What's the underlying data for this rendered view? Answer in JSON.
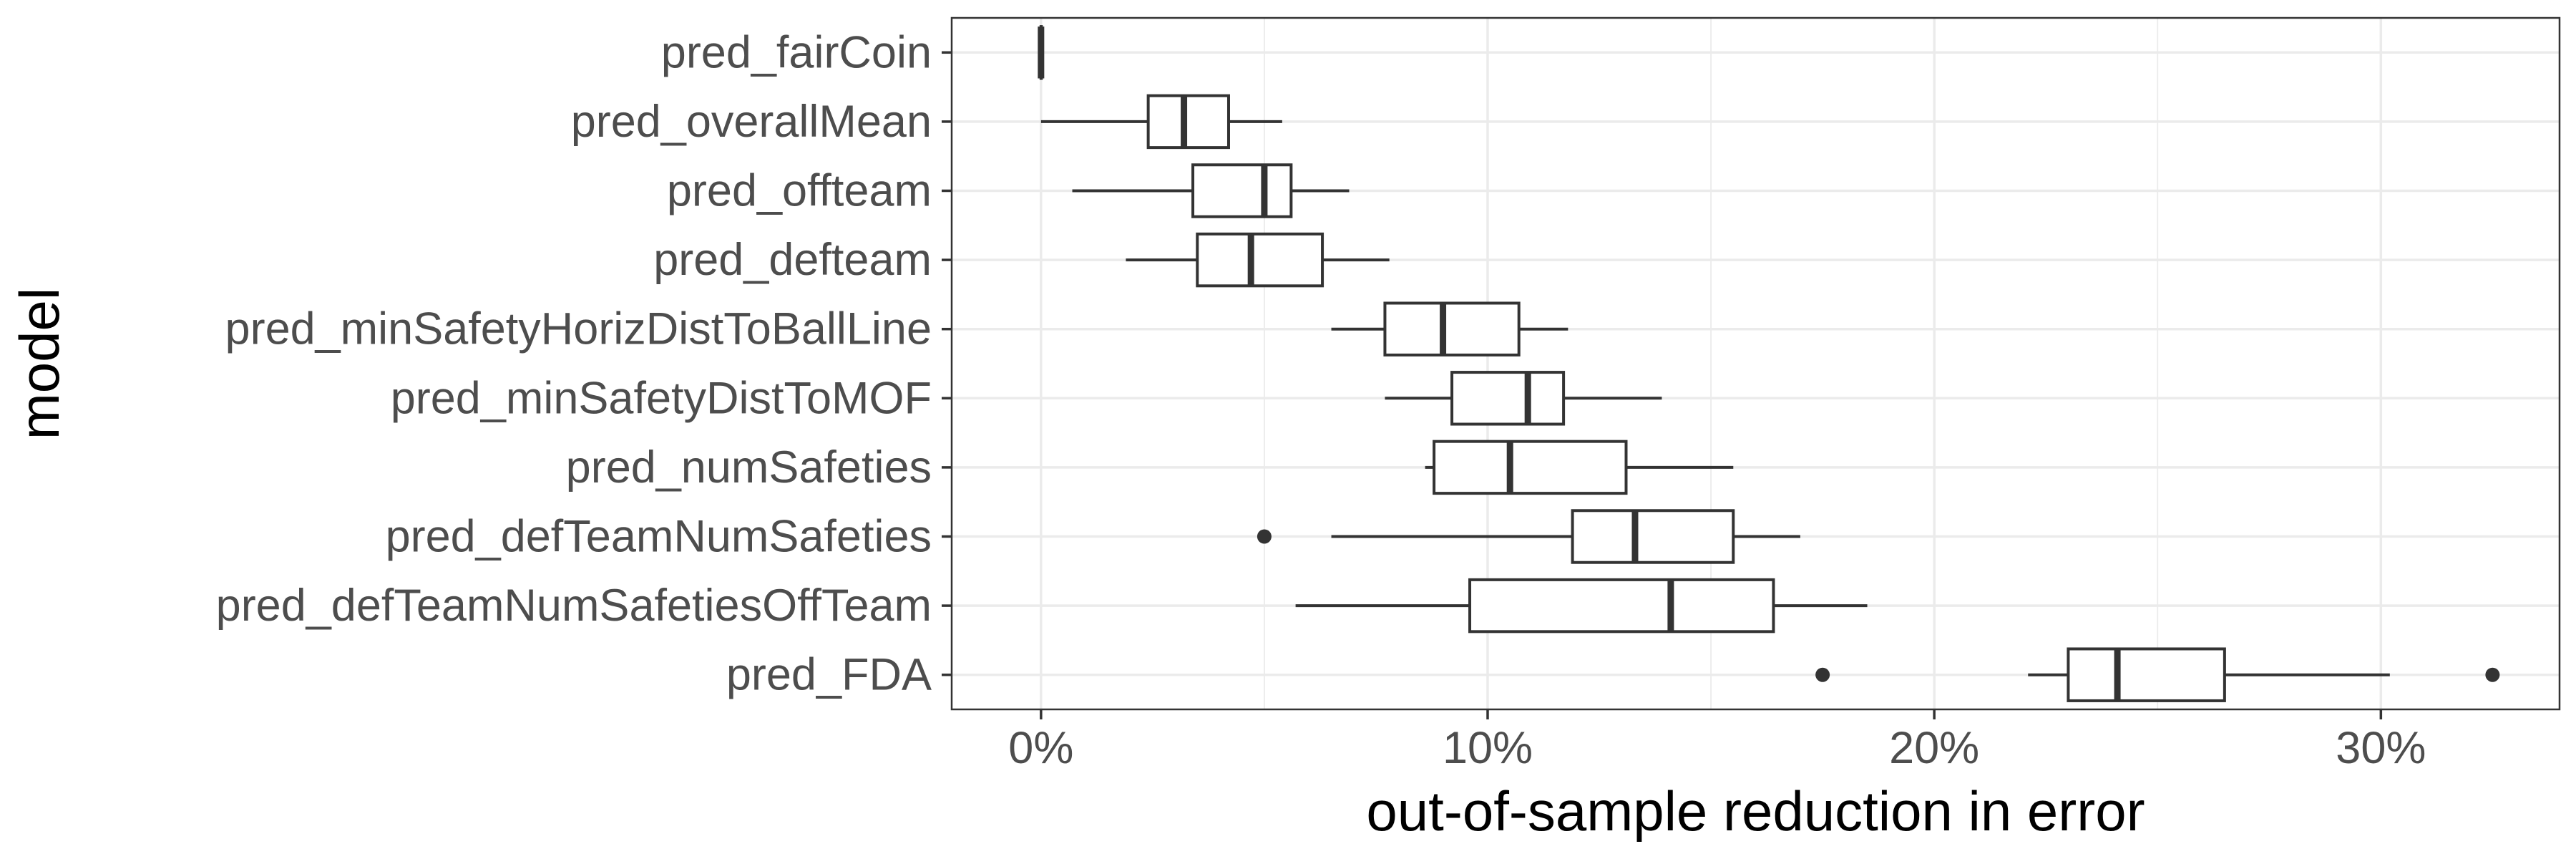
{
  "chart_data": {
    "type": "boxplot",
    "orientation": "horizontal",
    "xlabel": "out-of-sample reduction in error",
    "ylabel": "model",
    "xlim": [
      -0.02,
      0.34
    ],
    "x_ticks": [
      0,
      0.1,
      0.2,
      0.3
    ],
    "x_tick_labels": [
      "0%",
      "10%",
      "20%",
      "30%"
    ],
    "grid": true,
    "colors": {
      "box_stroke": "#333333",
      "grid": "#ebebeb",
      "panel_border": "#333333",
      "text": "#4d4d4d"
    },
    "categories": [
      "pred_fairCoin",
      "pred_overallMean",
      "pred_offteam",
      "pred_defteam",
      "pred_minSafetyHorizDistToBallLine",
      "pred_minSafetyDistToMOF",
      "pred_numSafeties",
      "pred_defTeamNumSafeties",
      "pred_defTeamNumSafetiesOffTeam",
      "pred_FDA"
    ],
    "boxes": [
      {
        "whisker_low": 0.0,
        "q1": 0.0,
        "median": 0.0,
        "q3": 0.0,
        "whisker_high": 0.0,
        "outliers": []
      },
      {
        "whisker_low": 0.0,
        "q1": 0.024,
        "median": 0.032,
        "q3": 0.042,
        "whisker_high": 0.054,
        "outliers": []
      },
      {
        "whisker_low": 0.007,
        "q1": 0.034,
        "median": 0.05,
        "q3": 0.056,
        "whisker_high": 0.069,
        "outliers": []
      },
      {
        "whisker_low": 0.019,
        "q1": 0.035,
        "median": 0.047,
        "q3": 0.063,
        "whisker_high": 0.078,
        "outliers": []
      },
      {
        "whisker_low": 0.065,
        "q1": 0.077,
        "median": 0.09,
        "q3": 0.107,
        "whisker_high": 0.118,
        "outliers": []
      },
      {
        "whisker_low": 0.077,
        "q1": 0.092,
        "median": 0.109,
        "q3": 0.117,
        "whisker_high": 0.139,
        "outliers": []
      },
      {
        "whisker_low": 0.086,
        "q1": 0.088,
        "median": 0.105,
        "q3": 0.131,
        "whisker_high": 0.155,
        "outliers": []
      },
      {
        "whisker_low": 0.065,
        "q1": 0.119,
        "median": 0.133,
        "q3": 0.155,
        "whisker_high": 0.17,
        "outliers": [
          0.05
        ]
      },
      {
        "whisker_low": 0.057,
        "q1": 0.096,
        "median": 0.141,
        "q3": 0.164,
        "whisker_high": 0.185,
        "outliers": []
      },
      {
        "whisker_low": 0.221,
        "q1": 0.23,
        "median": 0.241,
        "q3": 0.265,
        "whisker_high": 0.302,
        "outliers": [
          0.175,
          0.325
        ]
      }
    ]
  }
}
